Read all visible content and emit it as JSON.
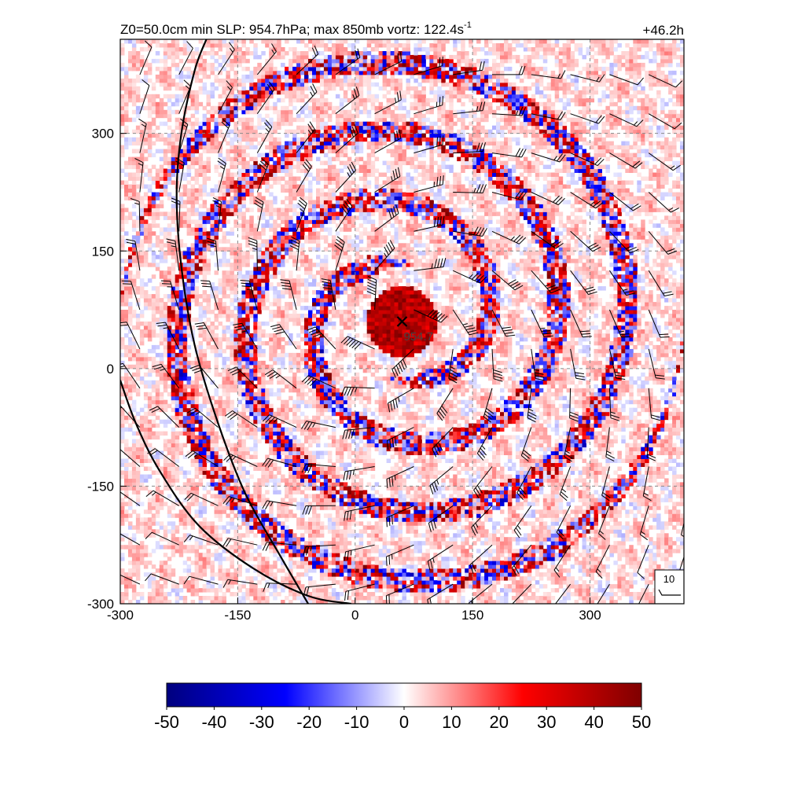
{
  "title": {
    "prefix": "Z0=50.0cm  min SLP: 954.7hPa; max 850mb vortz: 122.4s",
    "superscript": "-1",
    "time": "+46.2h"
  },
  "chart_data": {
    "type": "heatmap",
    "xlim": [
      -300,
      420
    ],
    "ylim": [
      -300,
      420
    ],
    "x_ticks": [
      -300,
      -150,
      0,
      150,
      300
    ],
    "y_ticks": [
      -300,
      -150,
      0,
      150,
      300
    ],
    "x_tick_labels": [
      "-300",
      "-150",
      "0",
      "150",
      "300"
    ],
    "y_tick_labels": [
      "-300",
      "-150",
      "0",
      "150",
      "300"
    ],
    "grid": "dashed",
    "field": "850mb relative vorticity",
    "center": {
      "x": 60,
      "y": 60,
      "marker": "x",
      "label": "954.7"
    },
    "eye_radius": 45,
    "coastlines": [
      {
        "points": [
          [
            -190,
            420
          ],
          [
            -205,
            380
          ],
          [
            -222,
            300
          ],
          [
            -228,
            220
          ],
          [
            -222,
            130
          ],
          [
            -205,
            30
          ],
          [
            -175,
            -70
          ],
          [
            -140,
            -160
          ],
          [
            -95,
            -240
          ],
          [
            -60,
            -300
          ]
        ]
      },
      {
        "points": [
          [
            -300,
            -15
          ],
          [
            -280,
            -70
          ],
          [
            -250,
            -130
          ],
          [
            -200,
            -200
          ],
          [
            -130,
            -255
          ],
          [
            -60,
            -290
          ],
          [
            -5,
            -300
          ]
        ]
      }
    ],
    "wind_barbs": {
      "spacing": 50,
      "reference_label": "10"
    },
    "colorbar": {
      "min": -50,
      "max": 50,
      "tick_values": [
        -50,
        -40,
        -30,
        -20,
        -10,
        0,
        10,
        20,
        30,
        40,
        50
      ],
      "tick_labels": [
        "-50",
        "-40",
        "-30",
        "-20",
        "-10",
        "0",
        "10",
        "20",
        "30",
        "40",
        "50"
      ],
      "colors": [
        "#00007f",
        "#0000ff",
        "#ffffff",
        "#ff0000",
        "#7f0000"
      ]
    }
  }
}
